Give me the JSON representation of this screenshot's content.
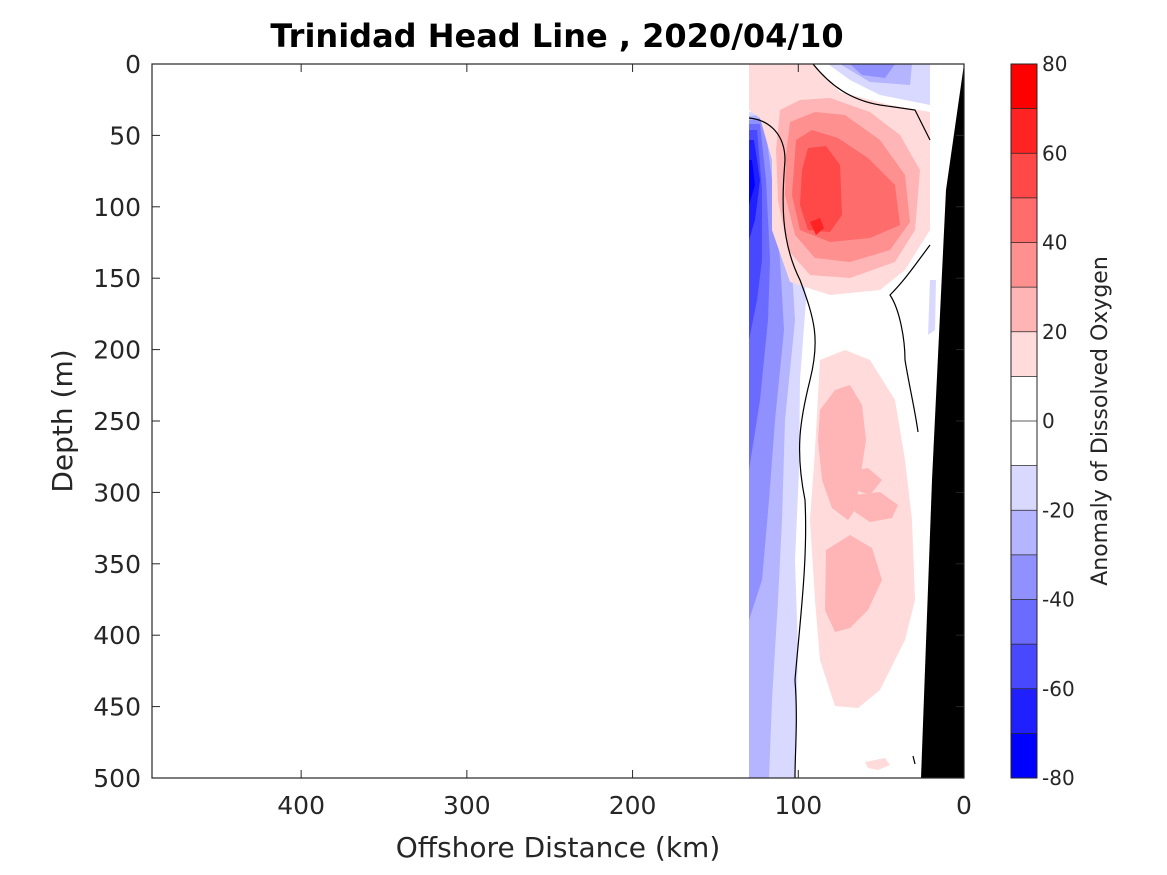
{
  "chart_data": {
    "type": "heatmap",
    "subtype": "filled-contour section",
    "title": "Trinidad Head Line , 2020/04/10",
    "xlabel": "Offshore Distance (km)",
    "ylabel": "Depth (m)",
    "xlim": [
      490,
      0
    ],
    "ylim": [
      500,
      0
    ],
    "x_reversed": true,
    "y_reversed": true,
    "xticks": [
      400,
      300,
      200,
      100,
      0
    ],
    "yticks": [
      0,
      50,
      100,
      150,
      200,
      250,
      300,
      350,
      400,
      450,
      500
    ],
    "colorbar": {
      "label": "Anomaly of Dissolved Oxygen",
      "min": -80,
      "max": 80,
      "step": 10,
      "ticks": [
        -80,
        -60,
        -40,
        -20,
        0,
        20,
        40,
        60,
        80
      ],
      "colors": [
        "#0000ff",
        "#2020ff",
        "#4848ff",
        "#6b6bff",
        "#9090ff",
        "#b4b4ff",
        "#d9d9ff",
        "#ffffff",
        "#ffffff",
        "#ffdbdb",
        "#ffb5b5",
        "#ff9090",
        "#ff6c6c",
        "#ff4848",
        "#ff2323",
        "#ff0000"
      ]
    },
    "data_extent_km": [
      0,
      130
    ],
    "seafloor_color": "#000000",
    "zero_contour_color": "#000000",
    "features": [
      {
        "name": "nearshore high anomaly core",
        "x_km": 90,
        "depth_m": 110,
        "value": 60
      },
      {
        "name": "upper positive anomaly",
        "x_range_km": [
          25,
          110
        ],
        "depth_range_m": [
          0,
          160
        ],
        "value_max": 60
      },
      {
        "name": "offshore negative band",
        "x_range_km": [
          100,
          130
        ],
        "depth_range_m": [
          40,
          500
        ],
        "value_min": -60
      },
      {
        "name": "surface negative patch",
        "x_range_km": [
          20,
          75
        ],
        "depth_range_m": [
          0,
          40
        ],
        "value_min": -30
      },
      {
        "name": "mid-depth positive anomaly",
        "x_range_km": [
          30,
          95
        ],
        "depth_range_m": [
          200,
          450
        ],
        "value_max": 30
      }
    ]
  }
}
